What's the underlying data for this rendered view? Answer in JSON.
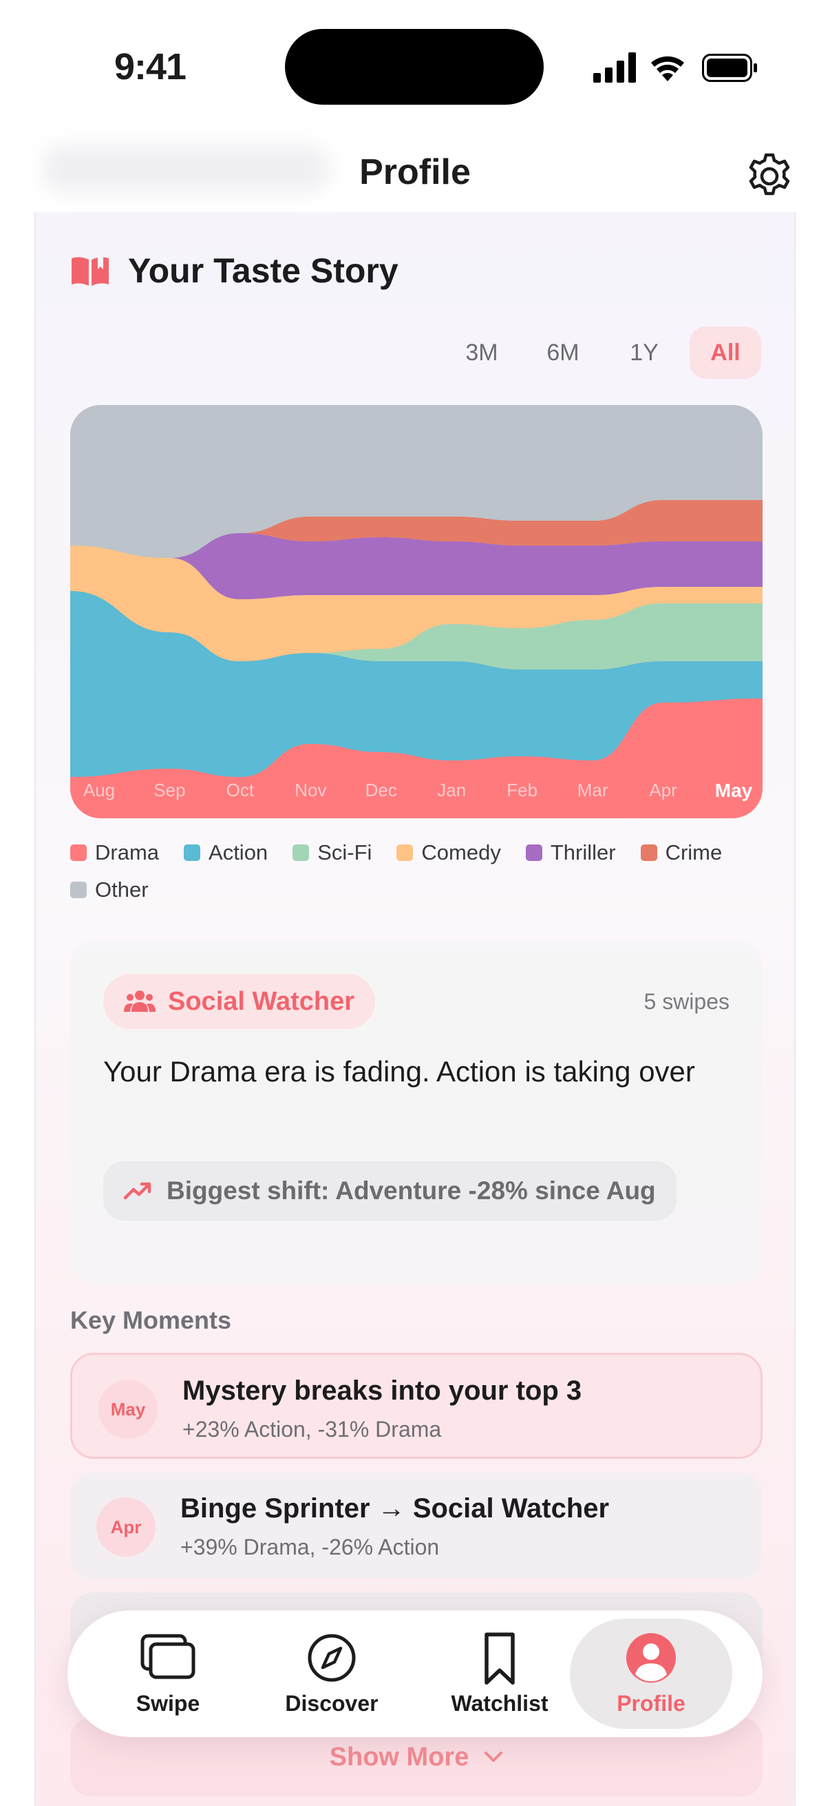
{
  "status_bar": {
    "time": "9:41"
  },
  "header": {
    "title": "Profile"
  },
  "taste_story": {
    "title": "Your Taste Story",
    "ranges": [
      {
        "label": "3M",
        "active": false
      },
      {
        "label": "6M",
        "active": false
      },
      {
        "label": "1Y",
        "active": false
      },
      {
        "label": "All",
        "active": true
      }
    ]
  },
  "chart_data": {
    "type": "area",
    "stacked": true,
    "normalized": true,
    "x": [
      "Aug",
      "Sep",
      "Oct",
      "Nov",
      "Dec",
      "Jan",
      "Feb",
      "Mar",
      "Apr",
      "May"
    ],
    "highlight_x": "May",
    "ylim": [
      0,
      100
    ],
    "series": [
      {
        "name": "Drama",
        "color": "#ff7a7d",
        "values": [
          10,
          12,
          10,
          18,
          16,
          14,
          15,
          14,
          28,
          29
        ]
      },
      {
        "name": "Action",
        "color": "#5bbad4",
        "values": [
          45,
          33,
          28,
          22,
          22,
          24,
          21,
          22,
          10,
          9
        ]
      },
      {
        "name": "Sci-Fi",
        "color": "#a2d5b6",
        "values": [
          0,
          0,
          0,
          0,
          3,
          9,
          10,
          12,
          14,
          14
        ]
      },
      {
        "name": "Comedy",
        "color": "#ffc385",
        "values": [
          11,
          18,
          15,
          14,
          13,
          7,
          8,
          6,
          4,
          4
        ]
      },
      {
        "name": "Thriller",
        "color": "#a66cc2",
        "values": [
          0,
          0,
          16,
          13,
          14,
          13,
          12,
          12,
          11,
          11
        ]
      },
      {
        "name": "Crime",
        "color": "#e57b66",
        "values": [
          0,
          0,
          0,
          6,
          5,
          6,
          6,
          6,
          10,
          10
        ]
      },
      {
        "name": "Other",
        "color": "#bcc3ca",
        "values": [
          34,
          37,
          31,
          27,
          27,
          27,
          28,
          28,
          23,
          23
        ]
      }
    ]
  },
  "legend": [
    {
      "label": "Drama",
      "color": "#ff7a7d"
    },
    {
      "label": "Action",
      "color": "#5bbad4"
    },
    {
      "label": "Sci-Fi",
      "color": "#a2d5b6"
    },
    {
      "label": "Comedy",
      "color": "#ffc385"
    },
    {
      "label": "Thriller",
      "color": "#a66cc2"
    },
    {
      "label": "Crime",
      "color": "#e57b66"
    },
    {
      "label": "Other",
      "color": "#bcc3ca"
    }
  ],
  "insight": {
    "persona": "Social Watcher",
    "swipes": "5 swipes",
    "text": "Your Drama era is fading. Action is taking over",
    "shift": "Biggest shift: Adventure -28% since Aug"
  },
  "key_moments": {
    "heading": "Key Moments",
    "items": [
      {
        "month": "May",
        "title": "Mystery breaks into your top 3",
        "subtitle": "+23% Action, -31% Drama"
      },
      {
        "month": "Apr",
        "title": "Binge Sprinter → Social Watcher",
        "subtitle": "+39% Drama, -26% Action"
      }
    ],
    "show_more": "Show More"
  },
  "tabbar": {
    "items": [
      {
        "label": "Swipe",
        "icon": "cards-icon",
        "active": false
      },
      {
        "label": "Discover",
        "icon": "compass-icon",
        "active": false
      },
      {
        "label": "Watchlist",
        "icon": "bookmark-icon",
        "active": false
      },
      {
        "label": "Profile",
        "icon": "person-icon",
        "active": true
      }
    ]
  },
  "colors": {
    "accent": "#f2646d"
  }
}
